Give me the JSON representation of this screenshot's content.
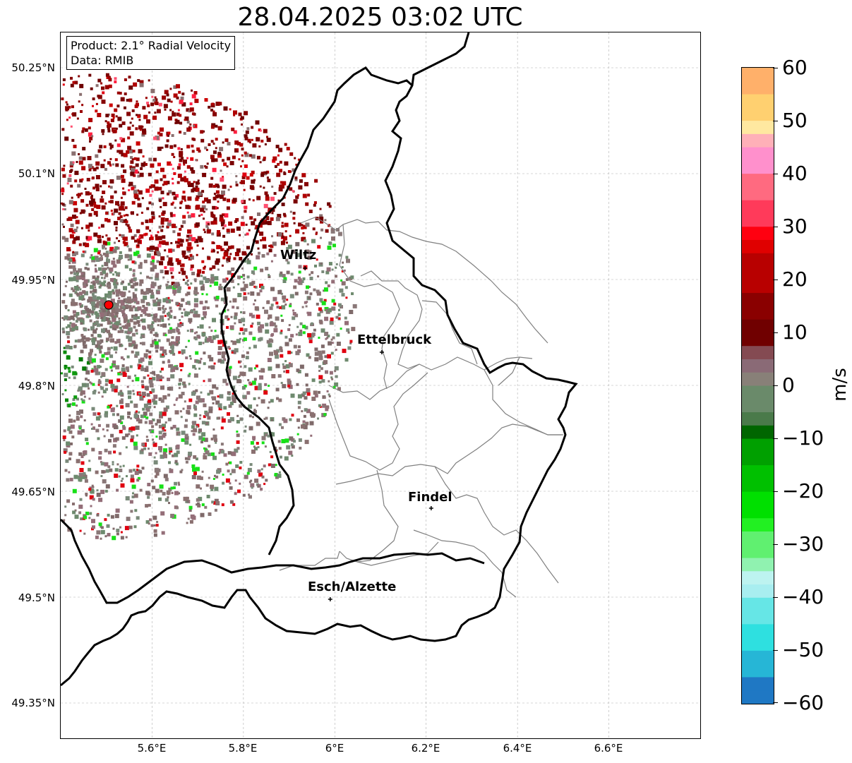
{
  "title": "28.04.2025 03:02 UTC",
  "info_box": {
    "product": "Product: 2.1° Radial Velocity",
    "data_source": "Data: RMIB"
  },
  "map_axes": {
    "lon_range": [
      5.4,
      6.8
    ],
    "lat_range": [
      49.3,
      50.3
    ],
    "lon_ticks": [
      "5.6°E",
      "5.8°E",
      "6°E",
      "6.2°E",
      "6.4°E",
      "6.6°E"
    ],
    "lat_ticks": [
      "50.25°N",
      "50.1°N",
      "49.95°N",
      "49.8°N",
      "49.65°N",
      "49.5°N",
      "49.35°N"
    ],
    "grid": "dashed"
  },
  "cities": [
    {
      "name": "Wiltz",
      "lon": 5.935,
      "lat": 49.966
    },
    {
      "name": "Ettelbruck",
      "lon": 6.103,
      "lat": 49.847
    },
    {
      "name": "Findel",
      "lon": 6.211,
      "lat": 49.626
    },
    {
      "name": "Esch/Alzette",
      "lon": 5.99,
      "lat": 49.497
    }
  ],
  "radar_site": {
    "lon": 5.505,
    "lat": 49.914,
    "color": "#ff0000"
  },
  "colorbar": {
    "unit": "m/s",
    "range": [
      -60,
      60
    ],
    "tick_labels": [
      "60",
      "50",
      "40",
      "30",
      "20",
      "10",
      "0",
      "−10",
      "−20",
      "−30",
      "−40",
      "−50",
      "−60"
    ]
  },
  "colors": {
    "country_border": "#000000",
    "canton_border": "#808080",
    "grid": "#b0b0b0",
    "radar_outbound_dark": "#7a0000",
    "radar_inbound": "#0a8a0a",
    "radar_near_zero": "#8a7878"
  }
}
